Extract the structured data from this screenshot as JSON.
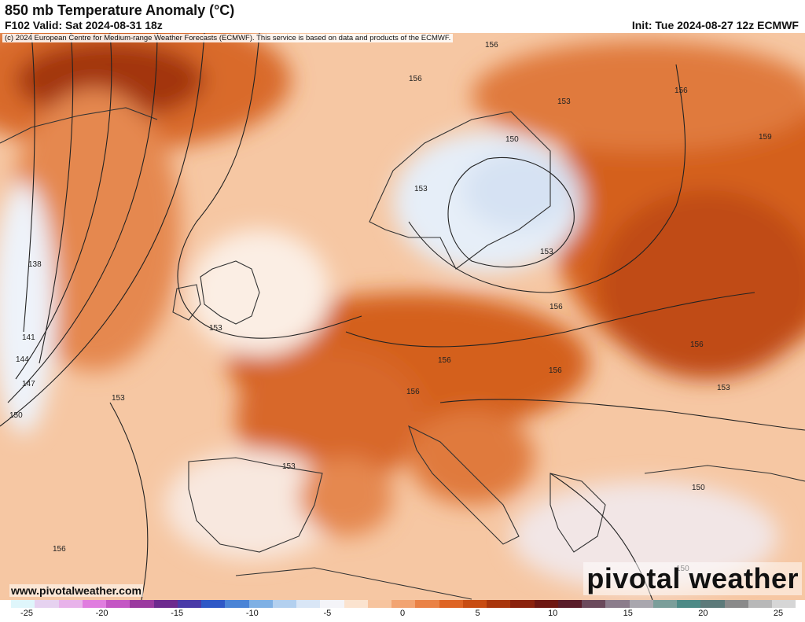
{
  "header": {
    "title": "850 mb Temperature Anomaly (°C)",
    "valid": "F102 Valid: Sat 2024-08-31 18z",
    "init": "Init: Tue 2024-08-27 12z ECMWF"
  },
  "map": {
    "copyright": "(c) 2024 European Centre for Medium-range Weather Forecasts (ECMWF). This service is based on data and products of the ECMWF.",
    "site_url": "www.pivotalweather.com",
    "brand": "pivotal weather",
    "contour_labels": [
      "156",
      "156",
      "153",
      "150",
      "153",
      "156",
      "159",
      "153",
      "138",
      "141",
      "144",
      "147",
      "150",
      "153",
      "156",
      "156",
      "156",
      "156",
      "156",
      "153",
      "153",
      "150",
      "150",
      "153",
      "156"
    ]
  },
  "colorbar": {
    "tick_labels": [
      "-25",
      "-20",
      "-15",
      "-10",
      "-5",
      "0",
      "5",
      "10",
      "15",
      "20",
      "25"
    ],
    "colors": [
      "#dff6fb",
      "#e6d2f0",
      "#e8b3ea",
      "#e07ddf",
      "#c456c4",
      "#9b3a9f",
      "#6d2a8e",
      "#4a3aa8",
      "#2f58c6",
      "#4b84d6",
      "#7fb0e4",
      "#b3d0ef",
      "#d9e6f6",
      "#f4f4f8",
      "#fbe3cf",
      "#f7c49e",
      "#f2a472",
      "#ea8246",
      "#de6424",
      "#c84c12",
      "#a9360c",
      "#8b220d",
      "#6e1712",
      "#5a1d2a",
      "#6b4a5c",
      "#8c7d8c",
      "#a9a7ae",
      "#7b9e9a",
      "#4d8a86",
      "#5d7a7a",
      "#8a8a8a",
      "#b8b8b8",
      "#d6d6d6"
    ]
  }
}
